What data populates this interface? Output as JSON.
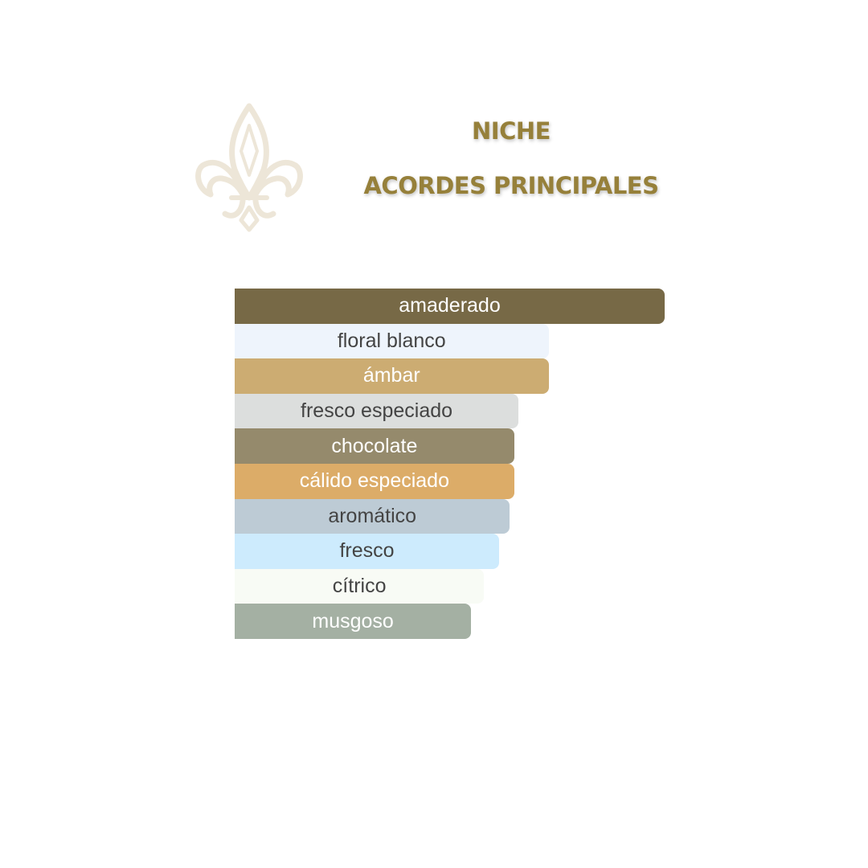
{
  "header": {
    "title": "NICHE",
    "subtitle": "ACORDES PRINCIPALES"
  },
  "logo": {
    "icon": "fleur-de-lis-icon",
    "color": "#ede6d8"
  },
  "chart_data": {
    "type": "bar",
    "orientation": "horizontal",
    "unit": "percent of strongest accord",
    "categories": [
      "amaderado",
      "floral blanco",
      "ámbar",
      "fresco especiado",
      "chocolate",
      "cálido especiado",
      "aromático",
      "fresco",
      "cítrico",
      "musgoso"
    ],
    "values": [
      100,
      73,
      73,
      66,
      65,
      65,
      64,
      61.5,
      58,
      55
    ],
    "colors": [
      "#776946",
      "#eef4fc",
      "#ccac72",
      "#dcdedd",
      "#958a6c",
      "#dcac68",
      "#bdcbd5",
      "#cdebfd",
      "#f8fbf5",
      "#a4b0a3"
    ],
    "text_colors": [
      "#ffffff",
      "#444444",
      "#ffffff",
      "#444444",
      "#ffffff",
      "#ffffff",
      "#444444",
      "#444444",
      "#444444",
      "#ffffff"
    ],
    "xlim": [
      0,
      100
    ],
    "grid": false,
    "legend": "none"
  }
}
